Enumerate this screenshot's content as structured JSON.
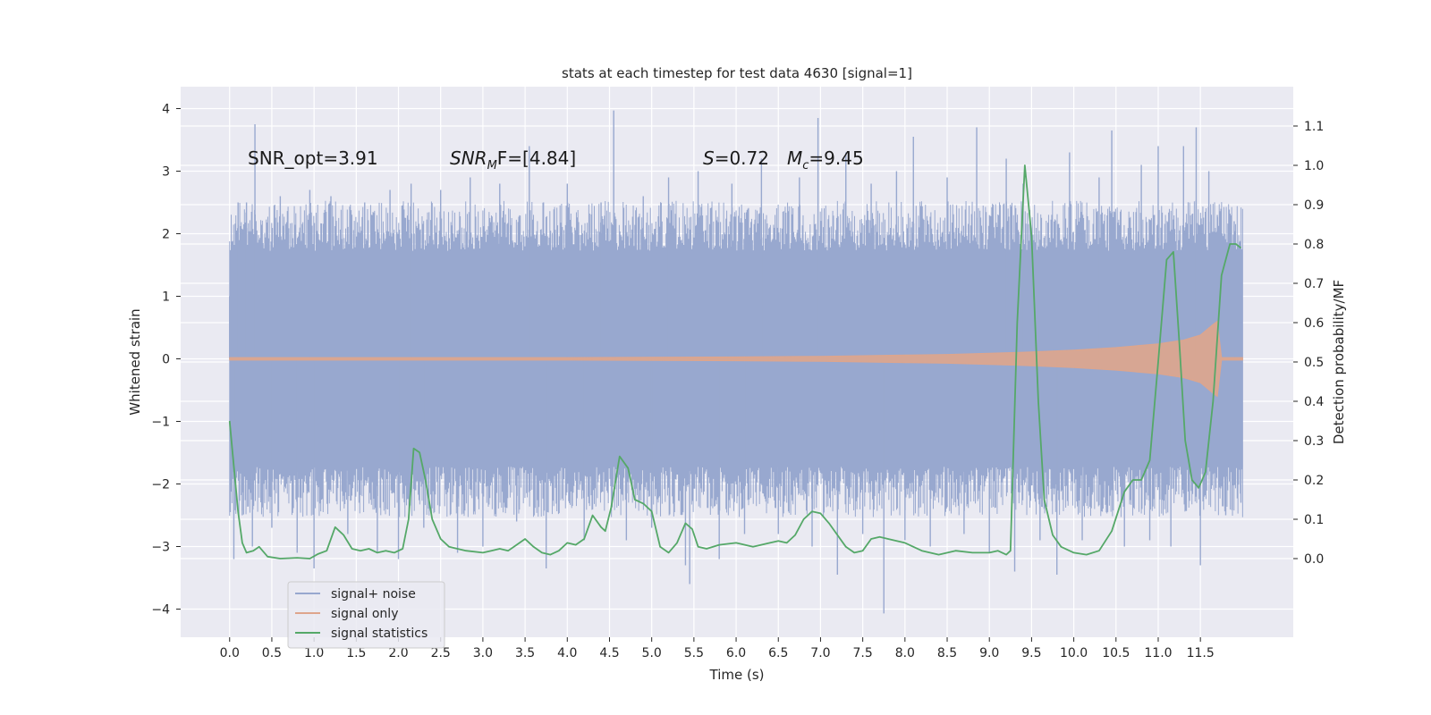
{
  "chart_data": {
    "type": "line",
    "title": "stats at each timestep for test data 4630 [signal=1]",
    "xlabel": "Time (s)",
    "ylabel_left": "Whitened strain",
    "ylabel_right": "Detection probability/MF",
    "xlim": [
      -0.58,
      12.6
    ],
    "ylim_left": [
      -4.45,
      4.35
    ],
    "ylim_right": [
      -0.2,
      1.2
    ],
    "x_ticks": [
      0.0,
      0.5,
      1.0,
      1.5,
      2.0,
      2.5,
      3.0,
      3.5,
      4.0,
      4.5,
      5.0,
      5.5,
      6.0,
      6.5,
      7.0,
      7.5,
      8.0,
      8.5,
      9.0,
      9.5,
      10.0,
      10.5,
      11.0,
      11.5
    ],
    "x_tick_labels": [
      "0.0",
      "0.5",
      "1.0",
      "1.5",
      "2.0",
      "2.5",
      "3.0",
      "3.5",
      "4.0",
      "4.5",
      "5.0",
      "5.5",
      "6.0",
      "6.5",
      "7.0",
      "7.5",
      "8.0",
      "8.5",
      "9.0",
      "9.5",
      "10.0",
      "10.5",
      "11.0",
      "11.5"
    ],
    "y_left_ticks": [
      -4,
      -3,
      -2,
      -1,
      0,
      1,
      2,
      3,
      4
    ],
    "y_left_tick_labels": [
      "−4",
      "−3",
      "−2",
      "−1",
      "0",
      "1",
      "2",
      "3",
      "4"
    ],
    "y_right_ticks": [
      0.0,
      0.1,
      0.2,
      0.3,
      0.4,
      0.5,
      0.6,
      0.7,
      0.8,
      0.9,
      1.0,
      1.1
    ],
    "y_right_tick_labels": [
      "0.0",
      "0.1",
      "0.2",
      "0.3",
      "0.4",
      "0.5",
      "0.6",
      "0.7",
      "0.8",
      "0.9",
      "1.0",
      "1.1"
    ],
    "grid": true,
    "legend_position": "lower-left",
    "annotations": {
      "snr_opt": "SNR_opt=3.91",
      "snr_mf_main": "SNR",
      "snr_mf_sub": "M",
      "snr_mf_rest": "F=[4.84]",
      "spin_main": "S",
      "spin_rest": "=0.72",
      "mc_main": "M",
      "mc_sub": "c",
      "mc_rest": "=9.45"
    },
    "series": [
      {
        "name": "signal+ noise",
        "axis": "left",
        "kind": "noise",
        "x_range": [
          0.0,
          12.0
        ],
        "approx_envelope": [
          -2.3,
          2.3
        ],
        "color": "#98a8cf",
        "points": [
          [
            0.0,
            1.0
          ],
          [
            0.05,
            -3.2
          ],
          [
            0.1,
            2.5
          ],
          [
            0.15,
            -2.5
          ],
          [
            0.2,
            2.5
          ],
          [
            0.27,
            -3.0
          ],
          [
            0.3,
            3.75
          ],
          [
            0.5,
            -2.7
          ],
          [
            0.6,
            2.6
          ],
          [
            0.8,
            -3.1
          ],
          [
            0.95,
            2.7
          ],
          [
            1.0,
            -3.35
          ],
          [
            1.2,
            2.6
          ],
          [
            1.4,
            -2.8
          ],
          [
            1.6,
            2.5
          ],
          [
            1.75,
            -3.1
          ],
          [
            1.9,
            2.7
          ],
          [
            2.0,
            -3.2
          ],
          [
            2.15,
            2.8
          ],
          [
            2.3,
            -2.7
          ],
          [
            2.5,
            2.7
          ],
          [
            2.7,
            -3.1
          ],
          [
            2.85,
            2.9
          ],
          [
            3.0,
            -3.0
          ],
          [
            3.2,
            2.8
          ],
          [
            3.4,
            -2.6
          ],
          [
            3.55,
            3.4
          ],
          [
            3.75,
            -3.35
          ],
          [
            4.0,
            2.8
          ],
          [
            4.2,
            -2.9
          ],
          [
            4.4,
            2.5
          ],
          [
            4.55,
            3.97
          ],
          [
            4.7,
            -2.9
          ],
          [
            4.9,
            2.6
          ],
          [
            5.0,
            -2.7
          ],
          [
            5.2,
            2.9
          ],
          [
            5.4,
            -3.3
          ],
          [
            5.45,
            -3.6
          ],
          [
            5.55,
            3.0
          ],
          [
            5.8,
            -3.2
          ],
          [
            5.95,
            2.8
          ],
          [
            6.1,
            -2.8
          ],
          [
            6.3,
            3.2
          ],
          [
            6.5,
            -2.8
          ],
          [
            6.75,
            2.9
          ],
          [
            6.9,
            -3.0
          ],
          [
            6.97,
            3.85
          ],
          [
            7.2,
            -3.45
          ],
          [
            7.3,
            3.3
          ],
          [
            7.5,
            -2.8
          ],
          [
            7.6,
            2.8
          ],
          [
            7.75,
            -4.07
          ],
          [
            7.9,
            3.0
          ],
          [
            8.0,
            -2.9
          ],
          [
            8.1,
            3.55
          ],
          [
            8.3,
            -3.0
          ],
          [
            8.5,
            2.9
          ],
          [
            8.7,
            -2.8
          ],
          [
            8.85,
            3.7
          ],
          [
            9.0,
            -3.1
          ],
          [
            9.2,
            3.2
          ],
          [
            9.3,
            -3.4
          ],
          [
            9.4,
            2.8
          ],
          [
            9.6,
            -2.9
          ],
          [
            9.8,
            -3.45
          ],
          [
            9.95,
            3.3
          ],
          [
            10.1,
            -2.9
          ],
          [
            10.3,
            2.9
          ],
          [
            10.45,
            3.65
          ],
          [
            10.6,
            -3.0
          ],
          [
            10.8,
            3.1
          ],
          [
            10.9,
            -2.9
          ],
          [
            11.0,
            3.4
          ],
          [
            11.15,
            -3.0
          ],
          [
            11.3,
            3.4
          ],
          [
            11.45,
            3.7
          ],
          [
            11.5,
            -3.3
          ],
          [
            11.6,
            3.0
          ],
          [
            11.7,
            2.3
          ],
          [
            11.8,
            -2.5
          ],
          [
            11.9,
            2.2
          ],
          [
            11.98,
            -2.3
          ]
        ]
      },
      {
        "name": "signal only",
        "axis": "left",
        "kind": "chirp",
        "color": "#dea58c",
        "points": [
          [
            0.0,
            0.02
          ],
          [
            1.0,
            0.02
          ],
          [
            2.0,
            0.02
          ],
          [
            3.0,
            0.02
          ],
          [
            4.0,
            0.02
          ],
          [
            5.0,
            0.025
          ],
          [
            6.0,
            0.03
          ],
          [
            7.0,
            0.04
          ],
          [
            7.5,
            0.05
          ],
          [
            8.0,
            0.06
          ],
          [
            8.5,
            0.07
          ],
          [
            9.0,
            0.09
          ],
          [
            9.5,
            0.11
          ],
          [
            10.0,
            0.14
          ],
          [
            10.5,
            0.18
          ],
          [
            11.0,
            0.24
          ],
          [
            11.3,
            0.3
          ],
          [
            11.5,
            0.38
          ],
          [
            11.65,
            0.55
          ],
          [
            11.7,
            0.6
          ],
          [
            11.75,
            0.02
          ],
          [
            12.0,
            0.02
          ]
        ]
      },
      {
        "name": "signal statistics",
        "axis": "right",
        "kind": "line",
        "color": "#55a868",
        "points": [
          [
            0.0,
            0.35
          ],
          [
            0.03,
            0.28
          ],
          [
            0.1,
            0.12
          ],
          [
            0.15,
            0.04
          ],
          [
            0.2,
            0.015
          ],
          [
            0.28,
            0.02
          ],
          [
            0.35,
            0.03
          ],
          [
            0.45,
            0.005
          ],
          [
            0.6,
            0.0
          ],
          [
            0.8,
            0.002
          ],
          [
            0.95,
            0.0
          ],
          [
            1.05,
            0.012
          ],
          [
            1.15,
            0.02
          ],
          [
            1.25,
            0.08
          ],
          [
            1.35,
            0.06
          ],
          [
            1.45,
            0.025
          ],
          [
            1.55,
            0.02
          ],
          [
            1.65,
            0.025
          ],
          [
            1.75,
            0.015
          ],
          [
            1.85,
            0.02
          ],
          [
            1.95,
            0.015
          ],
          [
            2.05,
            0.025
          ],
          [
            2.12,
            0.1
          ],
          [
            2.18,
            0.28
          ],
          [
            2.25,
            0.27
          ],
          [
            2.32,
            0.2
          ],
          [
            2.4,
            0.1
          ],
          [
            2.5,
            0.05
          ],
          [
            2.6,
            0.03
          ],
          [
            2.8,
            0.02
          ],
          [
            3.0,
            0.015
          ],
          [
            3.1,
            0.02
          ],
          [
            3.2,
            0.025
          ],
          [
            3.3,
            0.02
          ],
          [
            3.4,
            0.035
          ],
          [
            3.5,
            0.05
          ],
          [
            3.6,
            0.03
          ],
          [
            3.7,
            0.015
          ],
          [
            3.8,
            0.01
          ],
          [
            3.9,
            0.02
          ],
          [
            4.0,
            0.04
          ],
          [
            4.1,
            0.035
          ],
          [
            4.2,
            0.05
          ],
          [
            4.3,
            0.11
          ],
          [
            4.4,
            0.08
          ],
          [
            4.45,
            0.07
          ],
          [
            4.52,
            0.13
          ],
          [
            4.62,
            0.26
          ],
          [
            4.72,
            0.23
          ],
          [
            4.8,
            0.15
          ],
          [
            4.9,
            0.14
          ],
          [
            5.0,
            0.12
          ],
          [
            5.1,
            0.03
          ],
          [
            5.2,
            0.015
          ],
          [
            5.3,
            0.04
          ],
          [
            5.4,
            0.09
          ],
          [
            5.48,
            0.075
          ],
          [
            5.55,
            0.03
          ],
          [
            5.65,
            0.025
          ],
          [
            5.8,
            0.035
          ],
          [
            6.0,
            0.04
          ],
          [
            6.2,
            0.03
          ],
          [
            6.4,
            0.04
          ],
          [
            6.5,
            0.045
          ],
          [
            6.6,
            0.04
          ],
          [
            6.7,
            0.06
          ],
          [
            6.8,
            0.1
          ],
          [
            6.9,
            0.12
          ],
          [
            7.0,
            0.115
          ],
          [
            7.1,
            0.09
          ],
          [
            7.2,
            0.06
          ],
          [
            7.3,
            0.03
          ],
          [
            7.4,
            0.015
          ],
          [
            7.5,
            0.02
          ],
          [
            7.6,
            0.05
          ],
          [
            7.7,
            0.055
          ],
          [
            7.8,
            0.05
          ],
          [
            8.0,
            0.04
          ],
          [
            8.2,
            0.02
          ],
          [
            8.4,
            0.01
          ],
          [
            8.6,
            0.02
          ],
          [
            8.8,
            0.015
          ],
          [
            9.0,
            0.015
          ],
          [
            9.1,
            0.02
          ],
          [
            9.2,
            0.01
          ],
          [
            9.25,
            0.02
          ],
          [
            9.33,
            0.6
          ],
          [
            9.42,
            1.0
          ],
          [
            9.5,
            0.82
          ],
          [
            9.58,
            0.4
          ],
          [
            9.65,
            0.15
          ],
          [
            9.75,
            0.06
          ],
          [
            9.85,
            0.03
          ],
          [
            10.0,
            0.015
          ],
          [
            10.15,
            0.01
          ],
          [
            10.3,
            0.02
          ],
          [
            10.45,
            0.07
          ],
          [
            10.6,
            0.17
          ],
          [
            10.7,
            0.2
          ],
          [
            10.8,
            0.2
          ],
          [
            10.9,
            0.25
          ],
          [
            11.0,
            0.5
          ],
          [
            11.1,
            0.76
          ],
          [
            11.18,
            0.78
          ],
          [
            11.25,
            0.55
          ],
          [
            11.32,
            0.3
          ],
          [
            11.4,
            0.2
          ],
          [
            11.48,
            0.18
          ],
          [
            11.56,
            0.22
          ],
          [
            11.65,
            0.4
          ],
          [
            11.75,
            0.72
          ],
          [
            11.85,
            0.8
          ],
          [
            11.92,
            0.8
          ],
          [
            11.98,
            0.79
          ]
        ]
      }
    ]
  }
}
